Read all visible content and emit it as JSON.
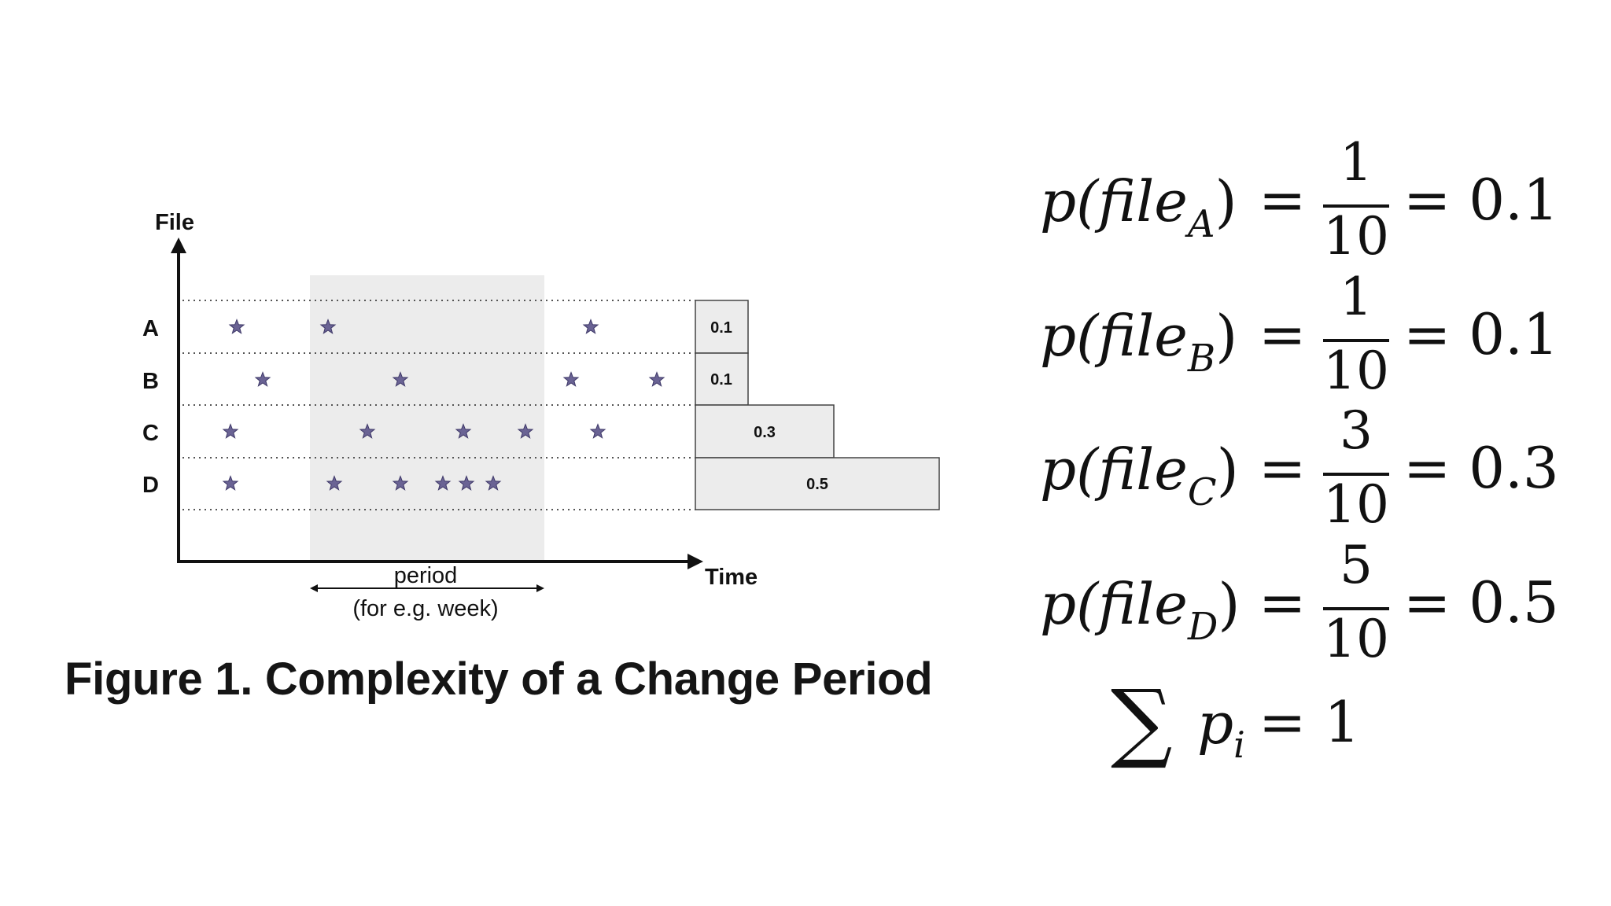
{
  "diagram": {
    "y_axis_label": "File",
    "x_axis_label": "Time",
    "rows": [
      {
        "label": "A",
        "box": "0.1"
      },
      {
        "label": "B",
        "box": "0.1"
      },
      {
        "label": "C",
        "box": "0.3"
      },
      {
        "label": "D",
        "box": "0.5"
      }
    ],
    "period_label_1": "period",
    "period_label_2": "(for e.g. week)",
    "star_color": "#6a6394",
    "shade_color": "#ececec"
  },
  "caption": "Figure 1. Complexity of a Change Period",
  "equations": [
    {
      "lhs_main": "p(file",
      "sub": "A",
      "num": "1",
      "den": "10",
      "result": "= 0.1"
    },
    {
      "lhs_main": "p(file",
      "sub": "B",
      "num": "1",
      "den": "10",
      "result": "= 0.1"
    },
    {
      "lhs_main": "p(file",
      "sub": "C",
      "num": "3",
      "den": "10",
      "result": "= 0.3"
    },
    {
      "lhs_main": "p(file",
      "sub": "D",
      "num": "5",
      "den": "10",
      "result": "= 0.5"
    }
  ],
  "sum_equation": {
    "sigma": "∑",
    "p": "p",
    "sub": "i",
    "rhs": "= 1"
  }
}
